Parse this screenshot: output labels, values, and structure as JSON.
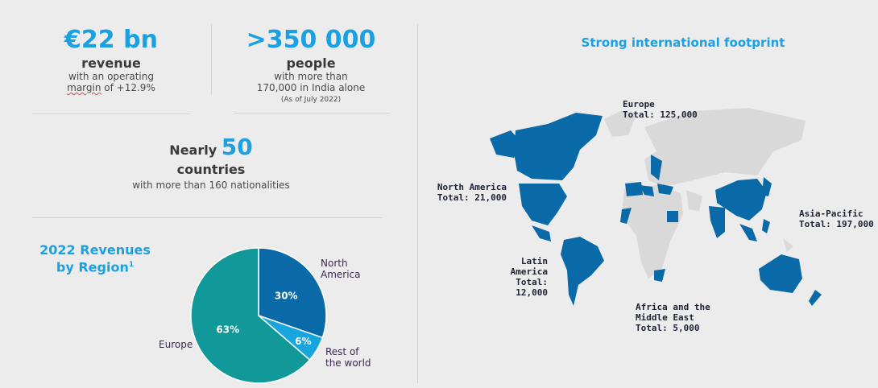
{
  "stats": {
    "revenue": {
      "value": "€22 bn",
      "label": "revenue",
      "sub_line1_a": "with an operating",
      "sub_line2_a": "margin",
      "sub_line2_b": " of +12.9%"
    },
    "people": {
      "value": ">350 000",
      "label": "people",
      "sub_line1": "with more than",
      "sub_line2": "170,000 in India alone",
      "note": "(As of July 2022)"
    },
    "countries": {
      "prefix": "Nearly ",
      "value": "50",
      "label": "countries",
      "sub": "with more than 160 nationalities"
    }
  },
  "pie": {
    "title_line1": "2022 Revenues",
    "title_line2": "by Region",
    "title_sup": "1"
  },
  "chart_data": {
    "type": "pie",
    "title": "2022 Revenues by Region",
    "slices": [
      {
        "name": "North America",
        "value": 30,
        "label": "30%",
        "color": "#0a6aa8"
      },
      {
        "name": "Rest of the world",
        "value": 6,
        "label": "6%",
        "color": "#18a5dd"
      },
      {
        "name": "Europe",
        "value": 63,
        "label": "63%",
        "color": "#119898"
      }
    ],
    "legend_text": {
      "north_line1": "North",
      "north_line2": "America",
      "rest_line1": "Rest of",
      "rest_line2": "the world",
      "europe": "Europe"
    }
  },
  "map": {
    "title": "Strong international footprint",
    "regions": [
      {
        "name": "Europe",
        "total": "Total: 125,000"
      },
      {
        "name": "North America",
        "total": "Total: 21,000"
      },
      {
        "name": "Asia-Pacific",
        "total": "Total: 197,000"
      },
      {
        "name": "Latin America",
        "total": "Total: 12,000"
      },
      {
        "name_line1": "Africa and the",
        "name_line2": "Middle East",
        "total": "Total: 5,000"
      }
    ],
    "colors": {
      "highlight": "#0a6aa8",
      "land": "#d9d9d9",
      "ocean": "#ececec"
    }
  },
  "colors": {
    "accent": "#1ba1e2",
    "background": "#ececec"
  }
}
